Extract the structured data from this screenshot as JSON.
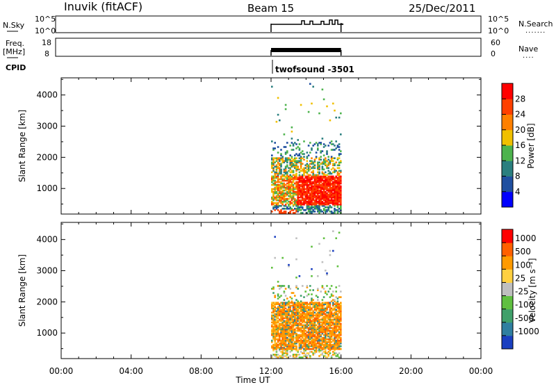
{
  "header": {
    "station": "Inuvik (fitACF)",
    "beam": "Beam 15",
    "date": "25/Dec/2011"
  },
  "status_panels": {
    "nsky_label": "N.Sky",
    "nsky_ticks_left": [
      "10^5",
      "10^0"
    ],
    "nsky_ticks_right": [
      "10^5",
      "10^0"
    ],
    "nsearch_label": "N.Search",
    "freq_label_line1": "Freq.",
    "freq_label_line2": "[MHz]",
    "freq_ticks_left": [
      "18",
      "8"
    ],
    "nave_ticks_right": [
      "60",
      "0"
    ],
    "nave_label": "Nave",
    "cpid_label": "CPID",
    "cpid_value": "twofsound -3501"
  },
  "time_axis": {
    "label": "Time UT",
    "ticks": [
      "00:00",
      "04:00",
      "08:00",
      "12:00",
      "16:00",
      "20:00",
      "00:00"
    ],
    "range_hours": [
      0,
      24
    ],
    "data_start_hour": 12,
    "data_end_hour": 16
  },
  "chart_data": [
    {
      "type": "heatmap",
      "name": "power",
      "ylabel": "Slant Range [km]",
      "ylim": [
        180,
        4550
      ],
      "yticks": [
        "1000",
        "2000",
        "3000",
        "4000"
      ],
      "colorbar_label": "Power [dB]",
      "colorbar_ticks": [
        "4",
        "8",
        "12",
        "16",
        "20",
        "24",
        "28"
      ],
      "colorbar_colors": [
        "#0000ff",
        "#1f4fa0",
        "#2a7f7f",
        "#4db34d",
        "#f0c000",
        "#ff8000",
        "#ff4000",
        "#ff0000"
      ]
    },
    {
      "type": "heatmap",
      "name": "velocity",
      "ylabel": "Slant Range [km]",
      "ylim": [
        180,
        4550
      ],
      "yticks": [
        "1000",
        "2000",
        "3000",
        "4000"
      ],
      "colorbar_label": "Velocity [m s⁻¹]",
      "colorbar_ticks": [
        "1000",
        "500",
        "100",
        "25",
        "-25",
        "-100",
        "-500",
        "-1000"
      ],
      "colorbar_colors": [
        "#1a3fc0",
        "#2f7fa0",
        "#3fa06a",
        "#60c040",
        "#bfbfbf",
        "#ffd040",
        "#ff9a00",
        "#ff6000",
        "#ff0000"
      ]
    }
  ]
}
